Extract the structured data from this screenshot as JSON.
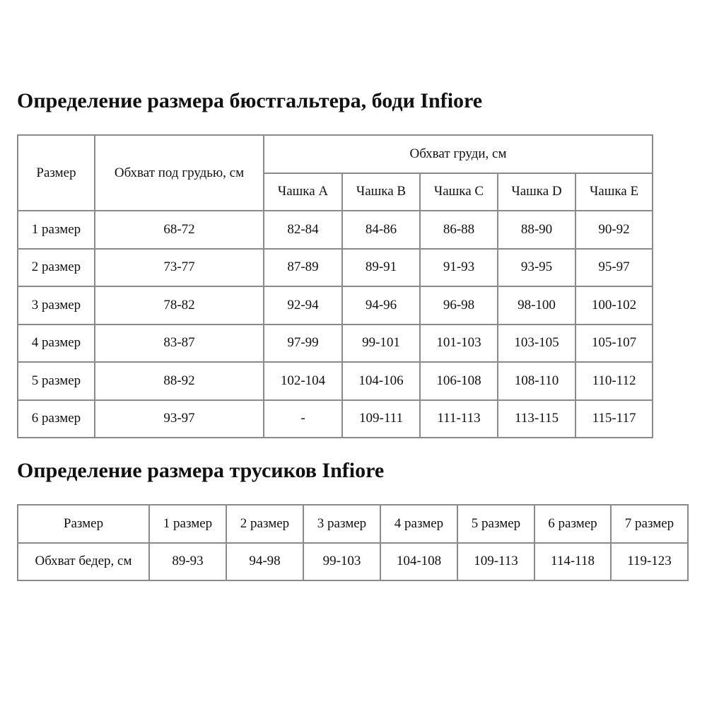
{
  "bra": {
    "title": "Определение размера бюстгальтера, боди Infiore",
    "header_size": "Размер",
    "header_underbust": "Обхват под грудью, см",
    "header_bust": "Обхват груди, см",
    "cups": [
      "Чашка A",
      "Чашка B",
      "Чашка C",
      "Чашка D",
      "Чашка E"
    ],
    "rows": [
      {
        "size": "1 размер",
        "underbust": "68-72",
        "cups": [
          "82-84",
          "84-86",
          "86-88",
          "88-90",
          "90-92"
        ]
      },
      {
        "size": "2 размер",
        "underbust": "73-77",
        "cups": [
          "87-89",
          "89-91",
          "91-93",
          "93-95",
          "95-97"
        ]
      },
      {
        "size": "3 размер",
        "underbust": "78-82",
        "cups": [
          "92-94",
          "94-96",
          "96-98",
          "98-100",
          "100-102"
        ]
      },
      {
        "size": "4 размер",
        "underbust": "83-87",
        "cups": [
          "97-99",
          "99-101",
          "101-103",
          "103-105",
          "105-107"
        ]
      },
      {
        "size": "5 размер",
        "underbust": "88-92",
        "cups": [
          "102-104",
          "104-106",
          "106-108",
          "108-110",
          "110-112"
        ]
      },
      {
        "size": "6 размер",
        "underbust": "93-97",
        "cups": [
          "-",
          "109-111",
          "111-113",
          "113-115",
          "115-117"
        ]
      }
    ]
  },
  "panties": {
    "title": "Определение размера трусиков Infiore",
    "row1_label": "Размер",
    "row2_label": "Обхват бедер, см",
    "sizes": [
      "1 размер",
      "2 размер",
      "3 размер",
      "4 размер",
      "5 размер",
      "6 размер",
      "7 размер"
    ],
    "hips": [
      "89-93",
      "94-98",
      "99-103",
      "104-108",
      "109-113",
      "114-118",
      "119-123"
    ]
  }
}
